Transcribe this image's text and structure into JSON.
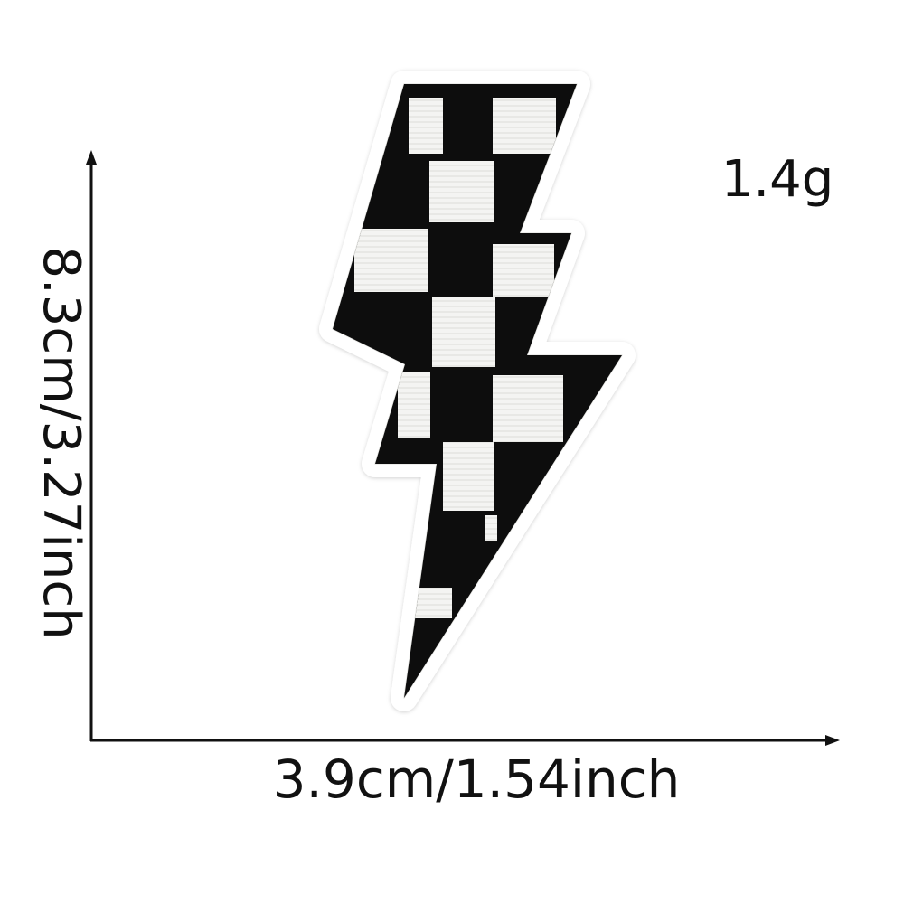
{
  "product": {
    "name": "checkered lightning bolt patch",
    "pattern_colors": {
      "dark": "#0d0d0d",
      "light": "#f4f4f2",
      "border": "#ffffff"
    }
  },
  "dimensions": {
    "height_label": "8.3cm/3.27inch",
    "width_label": "3.9cm/1.54inch",
    "weight_label": "1.4g"
  },
  "colors": {
    "axis": "#111111",
    "text": "#111111",
    "background": "#ffffff"
  }
}
